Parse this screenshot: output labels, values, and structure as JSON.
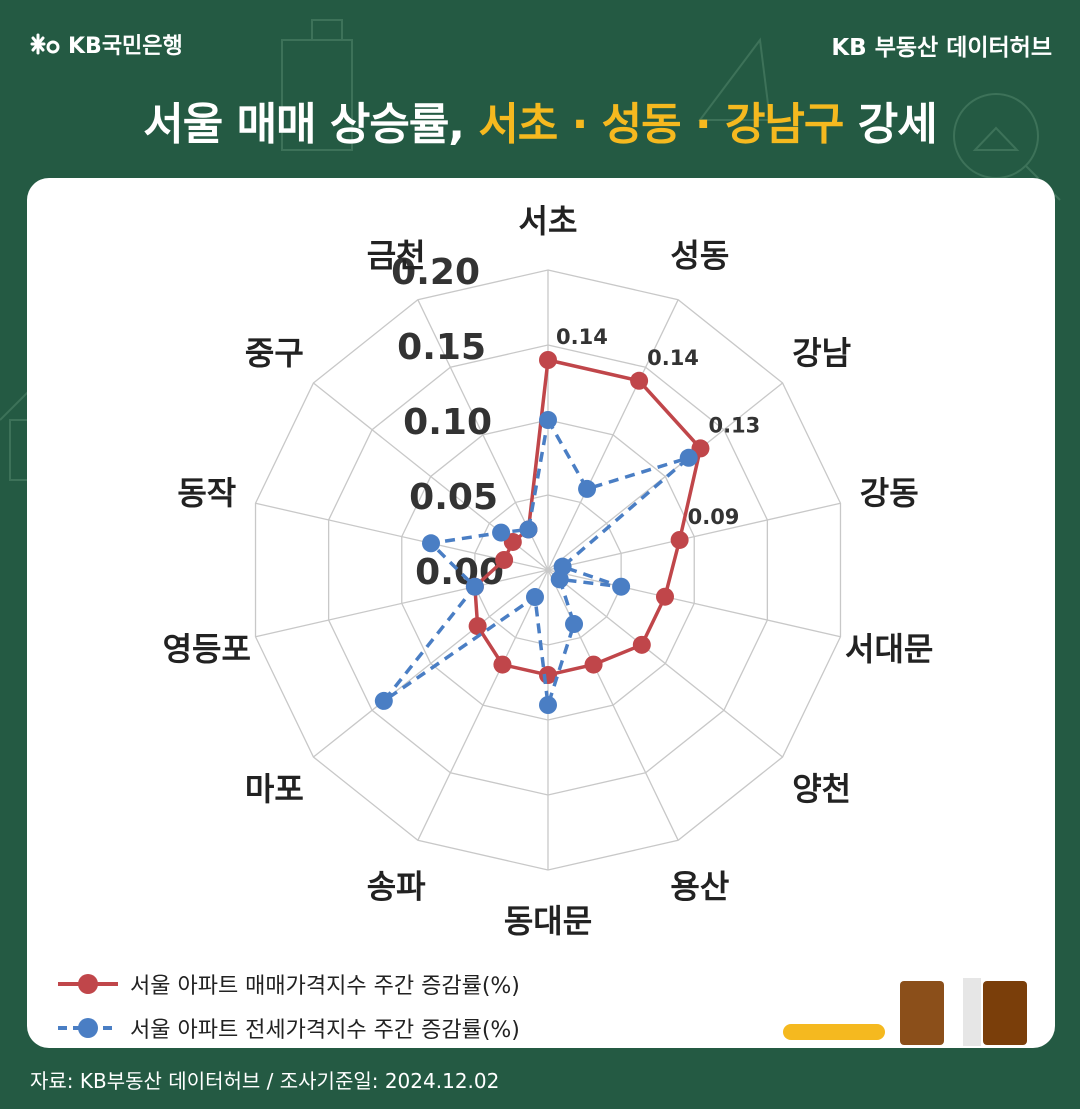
{
  "header": {
    "brand": "KB국민은행",
    "hub": "KB 부동산  데이터허브"
  },
  "title": {
    "part1": "서울 매매 상승률, ",
    "highlight": "서초 · 성동 · 강남구",
    "part2": " 강세"
  },
  "colors": {
    "background": "#245a43",
    "sale": "#c0464a",
    "jeonse": "#4a7ec4",
    "accent": "#f5b91f"
  },
  "chart_data": {
    "type": "radar",
    "categories": [
      "서초",
      "성동",
      "강남",
      "강동",
      "서대문",
      "양천",
      "용산",
      "동대문",
      "송파",
      "마포",
      "영등포",
      "동작",
      "중구",
      "금천"
    ],
    "radial_ticks": [
      "0.00",
      "0.05",
      "0.10",
      "0.15",
      "0.20"
    ],
    "rmin": 0,
    "rmax": 0.2,
    "series": [
      {
        "name": "서울 아파트 매매가격지수 주간 증감률(%)",
        "style": "solid",
        "values": [
          0.14,
          0.14,
          0.13,
          0.09,
          0.08,
          0.08,
          0.07,
          0.07,
          0.07,
          0.06,
          0.05,
          0.03,
          0.03,
          0.03
        ],
        "labels": [
          "0.14",
          "0.14",
          "0.13",
          "0.09",
          "",
          "",
          "",
          "",
          "",
          "",
          "",
          "",
          "",
          ""
        ]
      },
      {
        "name": "서울 아파트 전세가격지수 주간 증감률(%)",
        "style": "dashed",
        "values": [
          0.1,
          0.06,
          0.12,
          0.01,
          0.05,
          0.01,
          0.04,
          0.09,
          0.02,
          0.14,
          0.05,
          0.08,
          0.04,
          0.03
        ],
        "labels": [
          "",
          "",
          "",
          "",
          "",
          "",
          "",
          "",
          "",
          "",
          "",
          "",
          "",
          ""
        ]
      }
    ]
  },
  "footer": {
    "source": "자료: KB부동산 데이터허브 / 조사기준일: 2024.12.02"
  }
}
